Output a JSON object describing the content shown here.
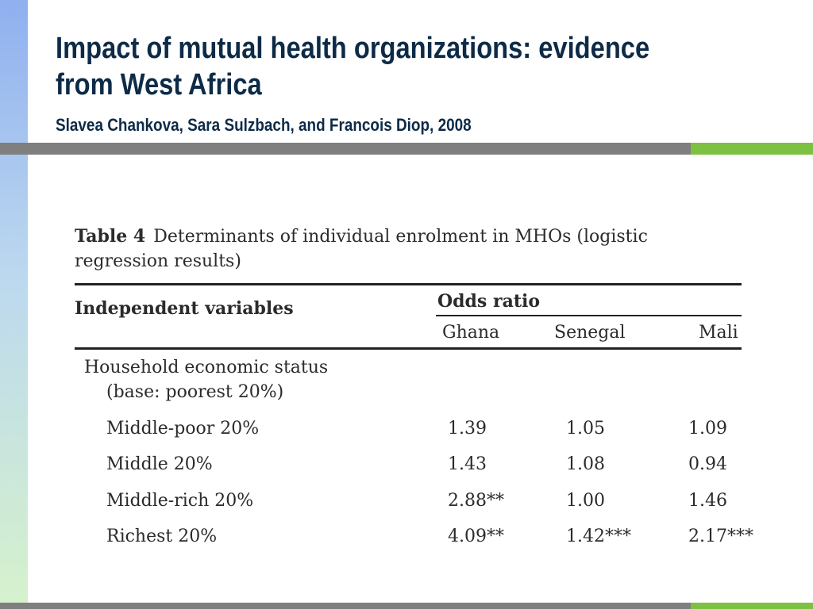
{
  "slide": {
    "title": "Impact of mutual health organizations: evidence from West Africa",
    "subtitle": "Slavea Chankova, Sara Sulzbach, and Francois Diop, 2008"
  },
  "table": {
    "label": "Table 4",
    "caption": "Determinants of individual enrolment in MHOs (logistic regression results)",
    "col_header": "Independent variables",
    "group_header": "Odds ratio",
    "countries": [
      "Ghana",
      "Senegal",
      "Mali"
    ],
    "section_title": "Household economic status",
    "section_base": "(base: poorest 20%)",
    "rows": [
      {
        "label": "Middle-poor 20%",
        "values": [
          "1.39",
          "1.05",
          "1.09"
        ]
      },
      {
        "label": "Middle 20%",
        "values": [
          "1.43",
          "1.08",
          "0.94"
        ]
      },
      {
        "label": "Middle-rich 20%",
        "values": [
          "2.88**",
          "1.00",
          "1.46"
        ]
      },
      {
        "label": "Richest 20%",
        "values": [
          "4.09**",
          "1.42***",
          "2.17***"
        ]
      }
    ]
  },
  "colors": {
    "title": "#0d2b47",
    "band_gray": "#7f7f7f",
    "band_green": "#7cc142",
    "left_bar_top": "#8fb0ef",
    "left_bar_bottom": "#d6f2cc"
  }
}
